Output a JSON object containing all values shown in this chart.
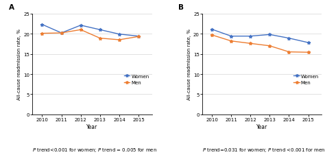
{
  "years": [
    2010,
    2011,
    2012,
    2013,
    2014,
    2015
  ],
  "panel_A": {
    "women": [
      22.3,
      20.2,
      22.1,
      21.0,
      19.9,
      19.4
    ],
    "men": [
      20.1,
      20.2,
      21.0,
      18.9,
      18.5,
      19.3
    ]
  },
  "panel_B": {
    "women": [
      21.1,
      19.4,
      19.4,
      19.8,
      18.9,
      17.8
    ],
    "men": [
      19.7,
      18.2,
      17.6,
      17.0,
      15.5,
      15.4
    ]
  },
  "color_women": "#4472C4",
  "color_men": "#ED7D31",
  "ylabel": "All-cause readmission rate, %",
  "xlabel": "Year",
  "ylim": [
    0,
    25
  ],
  "yticks": [
    0,
    5,
    10,
    15,
    20,
    25
  ],
  "label_A": "A",
  "label_B": "B",
  "caption_A": "P trend<0.001 for women; P trend = 0.005 for men",
  "caption_B": "P trend=0.031 for women; P trend <0.001 for men.",
  "legend_labels": [
    "Women",
    "Men"
  ]
}
